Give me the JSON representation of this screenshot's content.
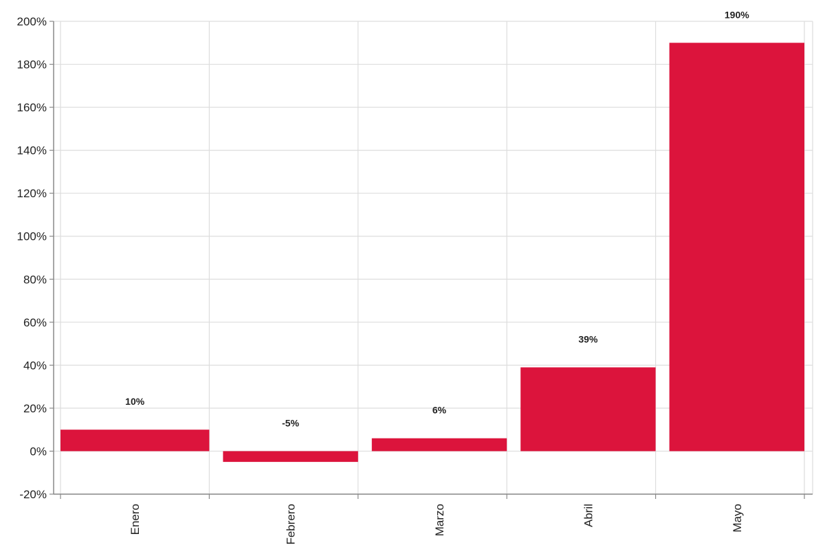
{
  "chart_data": {
    "type": "bar",
    "title": "",
    "xlabel": "",
    "ylabel": "",
    "categories": [
      "Enero",
      "Febrero",
      "Marzo",
      "Abril",
      "Mayo"
    ],
    "values": [
      10,
      -5,
      6,
      39,
      190
    ],
    "value_labels": [
      "10%",
      "-5%",
      "6%",
      "39%",
      "190%"
    ],
    "ylim": [
      -20,
      200
    ],
    "yticks": [
      -20,
      0,
      20,
      40,
      60,
      80,
      100,
      120,
      140,
      160,
      180,
      200
    ],
    "ytick_labels": [
      "-20%",
      "0%",
      "20%",
      "40%",
      "60%",
      "80%",
      "100%",
      "120%",
      "140%",
      "160%",
      "180%",
      "200%"
    ],
    "grid": true,
    "legend": null,
    "bar_color": "#DC143C",
    "x_label_rotation": -90
  }
}
